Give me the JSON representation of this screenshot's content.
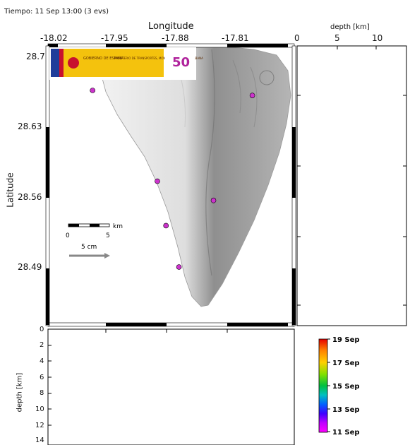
{
  "header": {
    "time_label": "Tiempo: 11 Sep 13:00 (3 evs)"
  },
  "map": {
    "x_axis_label": "Longitude",
    "y_axis_label": "Latitude",
    "lon_ticks": [
      "-18.02",
      "-17.95",
      "-17.88",
      "-17.81"
    ],
    "lat_ticks": [
      "28.7",
      "28.63",
      "28.56",
      "28.49"
    ],
    "scale_bar": {
      "unit": "km",
      "start": "0",
      "end": "5"
    },
    "vector_scale_label": "5 cm",
    "logo": {
      "text": [
        "GOBIERNO DE ESPAÑA",
        "MINISTERIO DE TRANSPORTES, MOVILIDAD Y AGENDA URBANA",
        "50"
      ]
    },
    "events": [
      {
        "lon": -17.97,
        "lat": 28.665
      },
      {
        "lon": -17.895,
        "lat": 28.575
      },
      {
        "lon": -17.885,
        "lat": 28.531
      },
      {
        "lon": -17.87,
        "lat": 28.49
      },
      {
        "lon": -17.83,
        "lat": 28.556
      },
      {
        "lon": -17.785,
        "lat": 28.66
      }
    ]
  },
  "depth_right": {
    "label": "depth [km]",
    "ticks": [
      "0",
      "5",
      "10"
    ]
  },
  "depth_bottom": {
    "label": "depth [km]",
    "ticks": [
      "0",
      "2",
      "4",
      "6",
      "8",
      "10",
      "12",
      "14"
    ]
  },
  "colorbar": {
    "labels": [
      "19 Sep",
      "17 Sep",
      "15 Sep",
      "13 Sep",
      "11 Sep"
    ],
    "colors": [
      "#e60000",
      "#ff8000",
      "#ffd000",
      "#80e000",
      "#00c040",
      "#00c0c0",
      "#0060ff",
      "#4000ff",
      "#c000ff",
      "#ff00ff"
    ]
  },
  "colors": {
    "event_fill": "#cc33cc",
    "frame": "#000000"
  }
}
